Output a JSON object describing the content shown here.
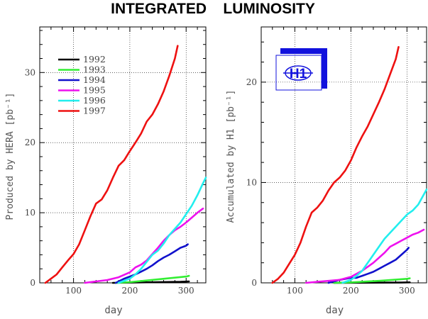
{
  "title": "INTEGRATED    LUMINOSITY",
  "colors": {
    "1992": "#000000",
    "1993": "#33ee33",
    "1994": "#1111cc",
    "1995": "#ee11ee",
    "1996": "#22eeee",
    "1997": "#ee1111",
    "logo": "#1111dd"
  },
  "logo": {
    "icon": "h1-logo",
    "text": "H1"
  },
  "chart_data": [
    {
      "type": "line",
      "title": "",
      "xlabel": "day",
      "ylabel": "Produced by HERA [pb⁻¹]",
      "xlim": [
        40,
        335
      ],
      "ylim": [
        0,
        36.5
      ],
      "xticks": [
        100,
        200,
        300
      ],
      "yticks": [
        0,
        10,
        20,
        30
      ],
      "grid": true,
      "legend": "top-left",
      "series": [
        {
          "name": "1992",
          "x": [
            170,
            290,
            305
          ],
          "y": [
            0,
            0.15,
            0.2
          ]
        },
        {
          "name": "1993",
          "x": [
            175,
            200,
            250,
            300,
            305
          ],
          "y": [
            0,
            0.1,
            0.5,
            0.9,
            1.0
          ]
        },
        {
          "name": "1994",
          "x": [
            175,
            190,
            200,
            210,
            220,
            230,
            240,
            250,
            260,
            270,
            280,
            290,
            300,
            303
          ],
          "y": [
            0,
            0.6,
            0.9,
            1.2,
            1.6,
            2.0,
            2.5,
            3.1,
            3.6,
            4.0,
            4.5,
            5.0,
            5.3,
            5.5
          ]
        },
        {
          "name": "1995",
          "x": [
            120,
            140,
            160,
            180,
            200,
            210,
            220,
            230,
            240,
            250,
            260,
            270,
            280,
            290,
            300,
            310,
            320,
            330
          ],
          "y": [
            0,
            0.2,
            0.4,
            0.8,
            1.5,
            2.2,
            2.6,
            3.2,
            4.1,
            5.0,
            6.0,
            6.8,
            7.5,
            8.0,
            8.6,
            9.3,
            10.0,
            10.6
          ]
        },
        {
          "name": "1996",
          "x": [
            180,
            200,
            210,
            220,
            230,
            240,
            250,
            260,
            270,
            280,
            290,
            300,
            310,
            320,
            330,
            335
          ],
          "y": [
            0,
            0.6,
            1.2,
            2.0,
            3.0,
            4.0,
            4.6,
            5.6,
            6.8,
            7.7,
            8.6,
            9.8,
            11.0,
            12.5,
            14.2,
            15.0
          ]
        },
        {
          "name": "1997",
          "x": [
            50,
            60,
            70,
            80,
            90,
            100,
            110,
            120,
            130,
            140,
            150,
            160,
            170,
            180,
            190,
            200,
            210,
            220,
            230,
            240,
            250,
            260,
            270,
            280,
            285
          ],
          "y": [
            0,
            0.6,
            1.2,
            2.2,
            3.2,
            4.1,
            5.5,
            7.5,
            9.5,
            11.3,
            11.9,
            13.2,
            15.0,
            16.7,
            17.5,
            18.8,
            20.0,
            21.3,
            23.0,
            24.0,
            25.5,
            27.3,
            29.5,
            32.0,
            33.8
          ]
        }
      ]
    },
    {
      "type": "line",
      "title": "",
      "xlabel": "day",
      "ylabel": "Accumulated by H1 [pb⁻¹]",
      "xlim": [
        40,
        335
      ],
      "ylim": [
        0,
        25.5
      ],
      "xticks": [
        100,
        200,
        300
      ],
      "yticks": [
        0,
        10,
        20
      ],
      "grid": true,
      "legend": "",
      "series": [
        {
          "name": "1992",
          "x": [
            170,
            290,
            305
          ],
          "y": [
            0,
            0.03,
            0.05
          ]
        },
        {
          "name": "1993",
          "x": [
            170,
            200,
            250,
            300,
            305
          ],
          "y": [
            0,
            0.05,
            0.2,
            0.4,
            0.45
          ]
        },
        {
          "name": "1994",
          "x": [
            160,
            180,
            190,
            200,
            210,
            220,
            230,
            240,
            250,
            260,
            270,
            280,
            290,
            300,
            303
          ],
          "y": [
            0,
            0.3,
            0.4,
            0.5,
            0.5,
            0.7,
            0.9,
            1.1,
            1.4,
            1.7,
            2.0,
            2.3,
            2.8,
            3.3,
            3.5
          ]
        },
        {
          "name": "1995",
          "x": [
            120,
            140,
            160,
            180,
            200,
            220,
            240,
            260,
            270,
            280,
            290,
            300,
            310,
            320,
            330
          ],
          "y": [
            0,
            0.1,
            0.2,
            0.3,
            0.6,
            1.2,
            2.0,
            3.0,
            3.6,
            3.9,
            4.2,
            4.5,
            4.8,
            5.0,
            5.3
          ]
        },
        {
          "name": "1996",
          "x": [
            185,
            200,
            210,
            220,
            230,
            240,
            250,
            260,
            270,
            280,
            290,
            300,
            310,
            320,
            330,
            335
          ],
          "y": [
            0,
            0.3,
            0.7,
            1.2,
            2.0,
            2.8,
            3.6,
            4.4,
            5.0,
            5.6,
            6.2,
            6.8,
            7.2,
            7.8,
            8.8,
            9.3
          ]
        },
        {
          "name": "1997",
          "x": [
            60,
            70,
            80,
            90,
            100,
            110,
            120,
            130,
            140,
            150,
            160,
            170,
            180,
            190,
            200,
            210,
            220,
            230,
            240,
            250,
            260,
            270,
            280,
            285
          ],
          "y": [
            0,
            0.4,
            1.0,
            1.9,
            2.8,
            4.0,
            5.6,
            7.0,
            7.5,
            8.2,
            9.2,
            10.0,
            10.5,
            11.2,
            12.2,
            13.5,
            14.6,
            15.6,
            16.8,
            18.0,
            19.3,
            20.8,
            22.3,
            23.5
          ]
        }
      ]
    }
  ]
}
